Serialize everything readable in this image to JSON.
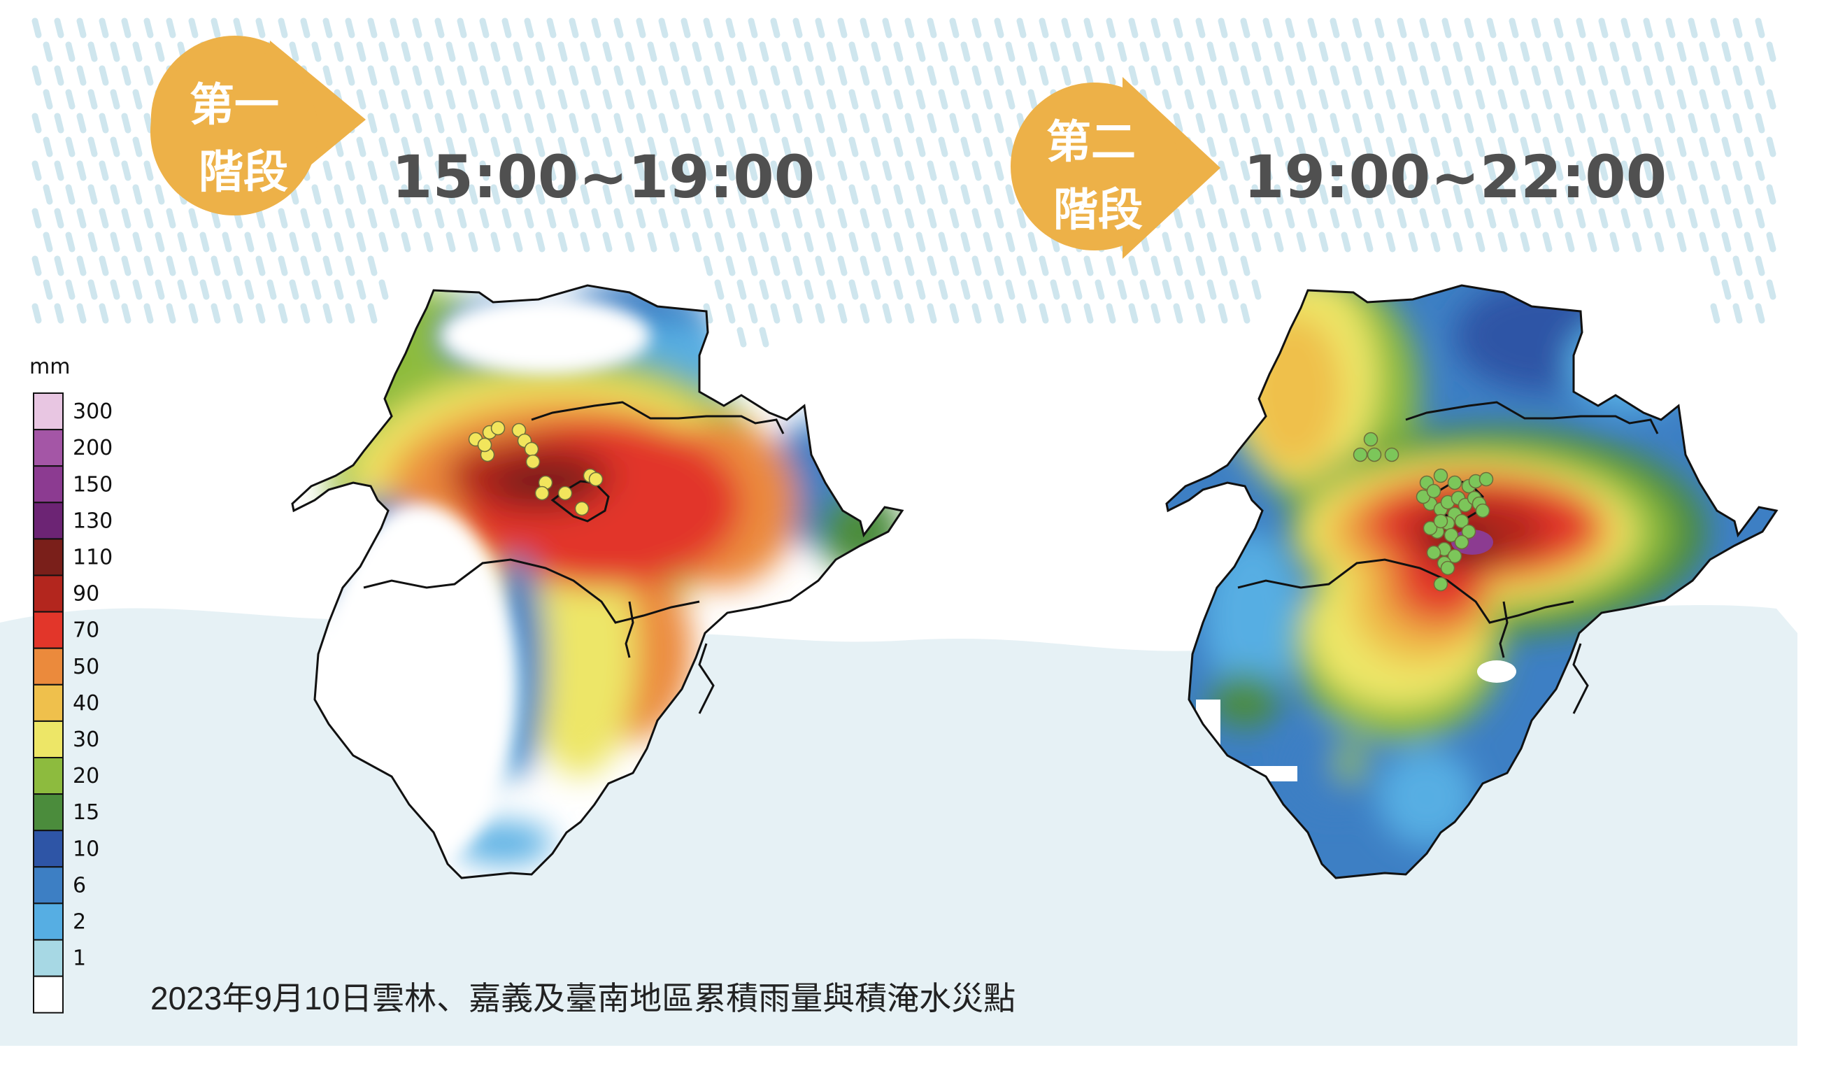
{
  "stage1": {
    "label_line1": "第一",
    "label_line2": "階段",
    "time_range": "15:00~19:00",
    "flood_point_color": "#f2e55c"
  },
  "stage2": {
    "label_line1": "第二",
    "label_line2": "階段",
    "time_range": "19:00~22:00",
    "flood_point_color": "#7cc65a"
  },
  "legend": {
    "unit": "mm",
    "ticks": [
      "300",
      "200",
      "150",
      "130",
      "110",
      "90",
      "70",
      "50",
      "40",
      "30",
      "20",
      "15",
      "10",
      "6",
      "2",
      "1"
    ],
    "colors": [
      "#e8c6e2",
      "#a456a6",
      "#8c3b91",
      "#6c2474",
      "#7a1f1a",
      "#b3261e",
      "#e2362a",
      "#eb8a3c",
      "#efc04c",
      "#ede667",
      "#8dbb3e",
      "#4b8c3c",
      "#2e55a6",
      "#3d7fc4",
      "#56aee3",
      "#a7d8e4",
      "#ffffff"
    ]
  },
  "caption": "2023年9月10日雲林、嘉義及臺南地區累積雨量與積淹水災點",
  "colors": {
    "badge": "#edb148",
    "title_text": "#505050",
    "rain_streak": "#cfe6ee",
    "background_wave": "#e6f1f5"
  }
}
